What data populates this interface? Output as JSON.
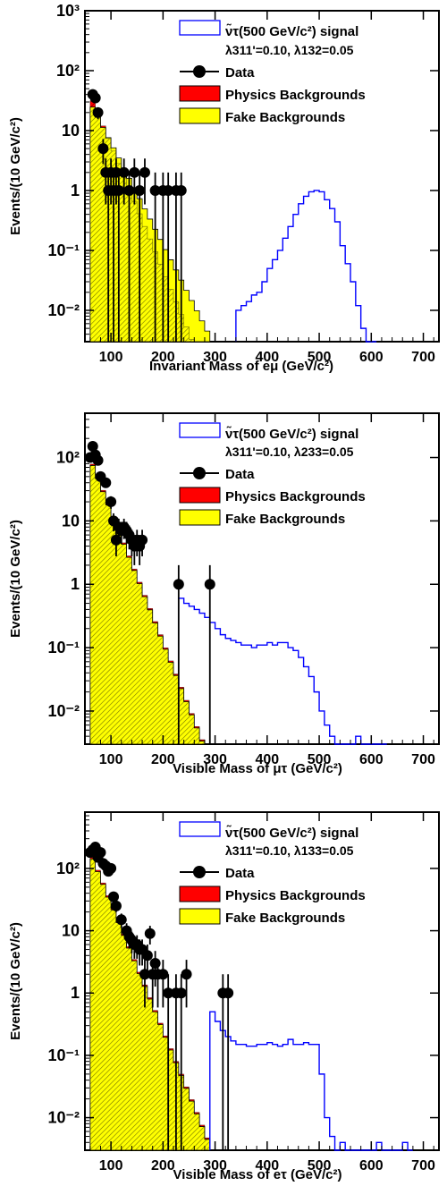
{
  "chart_data": [
    {
      "type": "histogram",
      "xlabel": "Invariant Mass of eμ (GeV/c²)",
      "ylabel": "Events/(10 GeV/c²)",
      "xlim": [
        50,
        730
      ],
      "ylim": [
        0.003,
        1000
      ],
      "log_y": true,
      "xticks": [
        "100",
        "200",
        "300",
        "400",
        "500",
        "600",
        "700"
      ],
      "yticks": [
        "10⁻²",
        "10⁻¹",
        "1",
        "10",
        "10²",
        "10³"
      ],
      "legend": {
        "position": "top-right",
        "entries": [
          "ν̃τ(500 GeV/c²) signal",
          "λ311'=0.10, λ132=0.05",
          "Data",
          "Physics Backgrounds",
          "Fake Backgrounds"
        ]
      },
      "bin_width": 10,
      "fake_backgrounds": {
        "start": 60,
        "start_value": 30,
        "decay_per_100GeV": 0.02
      },
      "physics_backgrounds_total": {
        "start": 60,
        "start_value": 40,
        "decay_per_100GeV": 0.008
      },
      "signal": {
        "x": [
          340,
          350,
          360,
          370,
          380,
          390,
          400,
          410,
          420,
          430,
          440,
          450,
          460,
          470,
          480,
          490,
          500,
          510,
          520,
          530,
          540,
          550,
          560,
          570,
          580,
          590,
          600
        ],
        "values": [
          0.01,
          0.012,
          0.014,
          0.018,
          0.02,
          0.03,
          0.05,
          0.07,
          0.1,
          0.16,
          0.25,
          0.4,
          0.6,
          0.8,
          0.95,
          1.0,
          0.95,
          0.7,
          0.5,
          0.3,
          0.12,
          0.06,
          0.03,
          0.012,
          0.005,
          0.003,
          0.003
        ]
      },
      "data": {
        "x": [
          65,
          70,
          75,
          85,
          90,
          95,
          100,
          105,
          110,
          115,
          125,
          135,
          145,
          155,
          165,
          185,
          200,
          210,
          225,
          235
        ],
        "values": [
          40,
          35,
          20,
          5,
          2,
          1,
          2,
          1,
          2,
          1,
          2,
          1,
          2,
          1,
          2,
          1,
          1,
          1,
          1,
          1
        ]
      },
      "colors": {
        "fake": "#FFFF00",
        "physics": "#FF0000",
        "signal": "#0000FF",
        "data": "#000000"
      }
    },
    {
      "type": "histogram",
      "xlabel": "Visible Mass of μτ (GeV/c²)",
      "ylabel": "Events/(10 GeV/c²)",
      "xlim": [
        50,
        730
      ],
      "ylim": [
        0.003,
        500
      ],
      "log_y": true,
      "xticks": [
        "100",
        "200",
        "300",
        "400",
        "500",
        "600",
        "700"
      ],
      "yticks": [
        "10⁻²",
        "10⁻¹",
        "1",
        "10",
        "10²"
      ],
      "legend": {
        "position": "top-right",
        "entries": [
          "ν̃τ(500 GeV/c²) signal",
          "λ311'=0.10, λ233=0.05",
          "Data",
          "Physics Backgrounds",
          "Fake Backgrounds"
        ]
      },
      "bin_width": 10,
      "fake_backgrounds": {
        "start": 60,
        "start_value": 95,
        "decay_per_100GeV": 0.0085
      },
      "physics_backgrounds_total": {
        "start": 60,
        "start_value": 100,
        "decay_per_100GeV": 0.0085
      },
      "signal": {
        "x": [
          230,
          240,
          250,
          260,
          270,
          280,
          290,
          300,
          310,
          320,
          330,
          340,
          350,
          360,
          370,
          380,
          390,
          400,
          410,
          420,
          430,
          440,
          450,
          460,
          470,
          480,
          490,
          500,
          510,
          520,
          530,
          540,
          550,
          560,
          570,
          580,
          590,
          600,
          610,
          620
        ],
        "values": [
          0.6,
          0.5,
          0.45,
          0.4,
          0.35,
          0.3,
          0.25,
          0.2,
          0.16,
          0.14,
          0.13,
          0.12,
          0.11,
          0.11,
          0.1,
          0.11,
          0.11,
          0.12,
          0.11,
          0.12,
          0.12,
          0.1,
          0.09,
          0.07,
          0.05,
          0.035,
          0.02,
          0.01,
          0.006,
          0.004,
          0.003,
          0.003,
          0.003,
          0.003,
          0.004,
          0.003,
          0.003,
          0.003,
          0.003,
          0.003
        ]
      },
      "data": {
        "x": [
          60,
          65,
          70,
          75,
          80,
          90,
          100,
          105,
          110,
          115,
          120,
          125,
          130,
          135,
          140,
          145,
          150,
          155,
          160,
          230,
          290
        ],
        "values": [
          100,
          150,
          110,
          90,
          50,
          40,
          20,
          10,
          5,
          8,
          7,
          8,
          7,
          6,
          5,
          4,
          5,
          4,
          5,
          1,
          1
        ]
      },
      "colors": {
        "fake": "#FFFF00",
        "physics": "#FF0000",
        "signal": "#0000FF",
        "data": "#000000"
      }
    },
    {
      "type": "histogram",
      "xlabel": "Visible Mass of eτ (GeV/c²)",
      "ylabel": "Events/(10 GeV/c²)",
      "xlim": [
        50,
        730
      ],
      "ylim": [
        0.003,
        800
      ],
      "log_y": true,
      "xticks": [
        "100",
        "200",
        "300",
        "400",
        "500",
        "600",
        "700"
      ],
      "yticks": [
        "10⁻²",
        "10⁻¹",
        "1",
        "10",
        "10²"
      ],
      "legend": {
        "position": "top-right",
        "entries": [
          "ν̃τ(500 GeV/c²) signal",
          "λ311'=0.10, λ133=0.05",
          "Data",
          "Physics Backgrounds",
          "Fake Backgrounds"
        ]
      },
      "bin_width": 10,
      "fake_backgrounds": {
        "start": 60,
        "start_value": 180,
        "decay_per_100GeV": 0.009
      },
      "physics_backgrounds_total": {
        "start": 60,
        "start_value": 190,
        "decay_per_100GeV": 0.009
      },
      "signal": {
        "x": [
          290,
          300,
          310,
          320,
          330,
          340,
          350,
          360,
          370,
          380,
          390,
          400,
          410,
          420,
          430,
          440,
          450,
          460,
          470,
          480,
          490,
          500,
          510,
          520,
          530,
          540,
          550,
          560,
          570,
          580,
          590,
          600,
          610,
          620,
          630,
          640,
          650,
          660,
          670
        ],
        "values": [
          0.5,
          0.35,
          0.25,
          0.2,
          0.17,
          0.15,
          0.15,
          0.14,
          0.14,
          0.15,
          0.15,
          0.16,
          0.15,
          0.14,
          0.15,
          0.18,
          0.15,
          0.15,
          0.16,
          0.15,
          0.15,
          0.05,
          0.01,
          0.005,
          0.003,
          0.004,
          0.003,
          0.003,
          0.003,
          0.003,
          0.003,
          0.003,
          0.004,
          0.003,
          0.003,
          0.003,
          0.003,
          0.004,
          0.003
        ]
      },
      "data": {
        "x": [
          60,
          65,
          70,
          75,
          80,
          85,
          90,
          95,
          100,
          105,
          110,
          120,
          130,
          135,
          140,
          145,
          150,
          155,
          160,
          165,
          170,
          175,
          180,
          185,
          190,
          200,
          210,
          225,
          235,
          245,
          315,
          325
        ],
        "values": [
          180,
          200,
          220,
          150,
          180,
          120,
          110,
          90,
          100,
          35,
          25,
          15,
          10,
          8,
          7,
          6,
          6,
          5,
          5,
          2,
          4,
          9,
          2,
          3,
          2,
          2,
          1,
          1,
          1,
          2,
          1,
          1
        ]
      },
      "colors": {
        "fake": "#FFFF00",
        "physics": "#FF0000",
        "signal": "#0000FF",
        "data": "#000000"
      }
    }
  ]
}
